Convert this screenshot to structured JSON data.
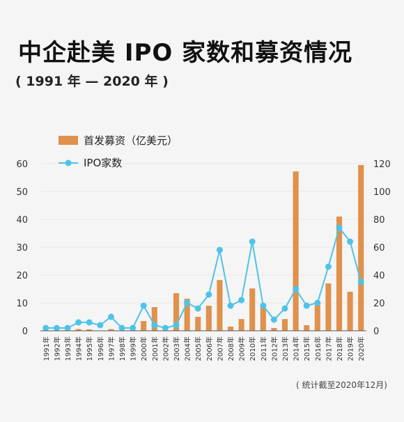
{
  "title": "中企赴美 IPO 家数和募资情况",
  "subtitle": "( 1991 年 — 2020 年 )",
  "note": "( 统计截至2020年12月)",
  "colors": {
    "bar": "#e0914c",
    "line": "#4ec3e8",
    "axis": "#555555",
    "grid": "#e6e6e6"
  },
  "chart_data": {
    "type": "bar+line",
    "categories": [
      "1991年",
      "1992年",
      "1993年",
      "1994年",
      "1995年",
      "1996年",
      "1997年",
      "1998年",
      "1999年",
      "2000年",
      "2001年",
      "2002年",
      "2003年",
      "2004年",
      "2005年",
      "2006年",
      "2007年",
      "2008年",
      "2009年",
      "2010年",
      "2011年",
      "2012年",
      "2013年",
      "2014年",
      "2015年",
      "2016年",
      "2017年",
      "2018年",
      "2019年",
      "2020年"
    ],
    "series": [
      {
        "name": "首发募资（亿美元）",
        "type": "bar",
        "axis": "left",
        "values": [
          0,
          0,
          0.2,
          0.6,
          0.5,
          0.1,
          0.6,
          0,
          0.2,
          3.5,
          8.5,
          0,
          13.5,
          11.5,
          5,
          9,
          18.2,
          1.5,
          4.2,
          15.2,
          8.3,
          1.0,
          4.2,
          57.2,
          2,
          9.2,
          17,
          41,
          14,
          59.5
        ]
      },
      {
        "name": "IPO家数",
        "type": "line",
        "axis": "right",
        "values": [
          2,
          2,
          2,
          6,
          6,
          4,
          10,
          2,
          2,
          18,
          4,
          2,
          4,
          20,
          16,
          26,
          58,
          18,
          22,
          64,
          18,
          8,
          16,
          30,
          18,
          20,
          46,
          74,
          64,
          35
        ]
      }
    ],
    "left_axis": {
      "ticks": [
        0,
        10,
        20,
        30,
        40,
        50,
        60
      ],
      "range": [
        0,
        60
      ]
    },
    "right_axis": {
      "ticks": [
        0,
        20,
        40,
        60,
        80,
        100,
        120
      ],
      "range": [
        0,
        120
      ]
    },
    "legend_position": "top-left"
  }
}
